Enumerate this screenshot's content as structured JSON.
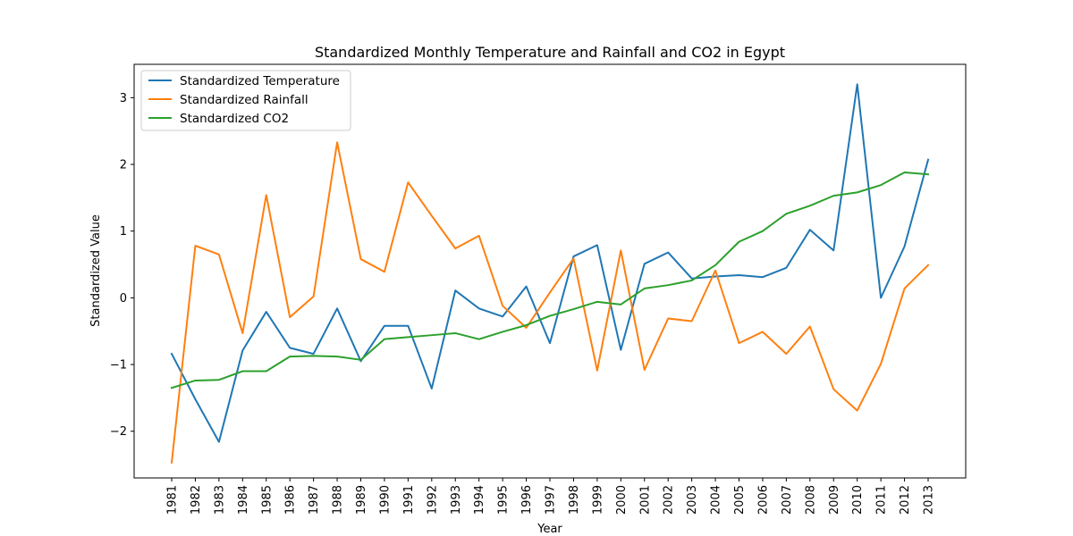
{
  "chart_data": {
    "type": "line",
    "title": "Standardized Monthly Temperature and Rainfall and CO2 in Egypt",
    "xlabel": "Year",
    "ylabel": "Standardized Value",
    "ylim": [
      -2.7,
      3.5
    ],
    "yticks": [
      -2,
      -1,
      0,
      1,
      2,
      3
    ],
    "ytick_labels": [
      "−2",
      "−1",
      "0",
      "1",
      "2",
      "3"
    ],
    "legend_position": "top-left",
    "grid": false,
    "x": [
      "1981",
      "1982",
      "1983",
      "1984",
      "1985",
      "1986",
      "1987",
      "1988",
      "1989",
      "1990",
      "1991",
      "1992",
      "1993",
      "1994",
      "1995",
      "1996",
      "1997",
      "1998",
      "1999",
      "2000",
      "2001",
      "2002",
      "2003",
      "2004",
      "2005",
      "2006",
      "2007",
      "2008",
      "2009",
      "2010",
      "2011",
      "2012",
      "2013"
    ],
    "series": [
      {
        "name": "Standardized Temperature",
        "color": "#1f77b4",
        "values": [
          -0.84,
          -1.52,
          -2.16,
          -0.79,
          -0.21,
          -0.75,
          -0.84,
          -0.16,
          -0.95,
          -0.42,
          -0.42,
          -1.36,
          0.11,
          -0.16,
          -0.28,
          0.17,
          -0.68,
          0.62,
          0.79,
          -0.78,
          0.51,
          0.68,
          0.29,
          0.32,
          0.34,
          0.31,
          0.45,
          1.02,
          0.71,
          3.2,
          0.0,
          0.77,
          2.07
        ]
      },
      {
        "name": "Standardized Rainfall",
        "color": "#ff7f0e",
        "values": [
          -2.47,
          0.78,
          0.65,
          -0.53,
          1.54,
          -0.29,
          0.02,
          2.33,
          0.58,
          0.39,
          1.73,
          1.23,
          0.74,
          0.93,
          -0.12,
          -0.45,
          0.08,
          0.59,
          -1.09,
          0.71,
          -1.08,
          -0.31,
          -0.35,
          0.41,
          -0.68,
          -0.51,
          -0.84,
          -0.43,
          -1.37,
          -1.69,
          -0.99,
          0.14,
          0.49
        ]
      },
      {
        "name": "Standardized CO2",
        "color": "#2ca02c",
        "values": [
          -1.35,
          -1.24,
          -1.23,
          -1.1,
          -1.1,
          -0.88,
          -0.87,
          -0.88,
          -0.93,
          -0.62,
          -0.59,
          -0.56,
          -0.53,
          -0.62,
          -0.51,
          -0.41,
          -0.27,
          -0.17,
          -0.06,
          -0.1,
          0.14,
          0.19,
          0.26,
          0.49,
          0.84,
          1.0,
          1.26,
          1.38,
          1.53,
          1.58,
          1.69,
          1.88,
          1.85
        ]
      }
    ]
  }
}
